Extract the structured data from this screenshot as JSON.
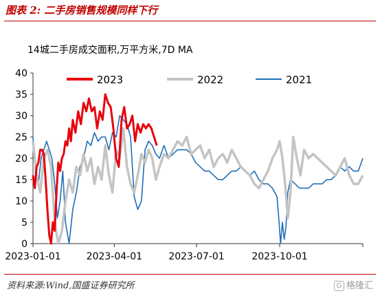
{
  "figure": {
    "title": "图表 2:  二手房销售规模同样下行",
    "source": "资料来源:Wind,国盛证券研究所",
    "watermark": "格隆汇",
    "watermark_icon": "G"
  },
  "chart_data": {
    "type": "line",
    "title": "14城二手房成交面积,万平方米,7D MA",
    "xlabel": "",
    "ylabel": "",
    "x_ticks": [
      "2023-01-01",
      "2023-04-01",
      "2023-07-01",
      "2023-10-01"
    ],
    "y_ticks": [
      0,
      5,
      10,
      15,
      20,
      25,
      30,
      35,
      40
    ],
    "ylim": [
      0,
      40
    ],
    "xlim": [
      0,
      365
    ],
    "grid": false,
    "legend_position": "top",
    "series": [
      {
        "name": "2023",
        "color": "#e8000b",
        "x": [
          0,
          2,
          4,
          6,
          8,
          10,
          12,
          14,
          16,
          18,
          20,
          22,
          24,
          26,
          28,
          30,
          32,
          34,
          36,
          38,
          40,
          42,
          44,
          47,
          50,
          53,
          56,
          59,
          62,
          65,
          68,
          71,
          74,
          77,
          80,
          83,
          86,
          89,
          92,
          95,
          98,
          101,
          104,
          107,
          110,
          113,
          116,
          119,
          122,
          125,
          128,
          131,
          134,
          137
        ],
        "values": [
          16,
          13,
          18,
          19,
          22,
          22,
          21,
          15,
          8,
          2,
          0,
          5,
          3,
          12,
          19,
          17,
          20,
          21,
          24,
          23,
          27,
          24,
          29,
          26,
          31,
          28,
          33,
          31,
          34,
          31,
          32,
          27,
          31,
          29,
          35,
          33,
          32,
          27,
          20,
          18,
          29,
          32,
          27,
          28,
          30,
          24,
          28,
          26,
          28,
          27,
          28,
          27,
          25,
          23
        ]
      },
      {
        "name": "2022",
        "color": "#c4c4c4",
        "x": [
          0,
          4,
          8,
          12,
          16,
          20,
          24,
          28,
          32,
          36,
          40,
          44,
          48,
          52,
          56,
          60,
          64,
          68,
          72,
          76,
          80,
          84,
          88,
          92,
          96,
          100,
          104,
          108,
          112,
          116,
          120,
          124,
          128,
          132,
          136,
          140,
          145,
          150,
          155,
          160,
          165,
          170,
          175,
          180,
          185,
          190,
          195,
          200,
          205,
          210,
          215,
          220,
          225,
          230,
          235,
          240,
          245,
          250,
          255,
          260,
          265,
          270,
          273,
          276,
          279,
          282,
          285,
          288,
          292,
          296,
          300,
          305,
          310,
          315,
          320,
          325,
          330,
          335,
          340,
          345,
          350,
          355,
          360,
          365
        ],
        "values": [
          24,
          16,
          12,
          20,
          22,
          18,
          5,
          0,
          3,
          10,
          15,
          12,
          18,
          16,
          21,
          17,
          20,
          14,
          18,
          15,
          23,
          16,
          12,
          22,
          20,
          27,
          18,
          14,
          12,
          16,
          21,
          19,
          22,
          20,
          15,
          18,
          21,
          20,
          22,
          24,
          23,
          25,
          21,
          22,
          23,
          20,
          22,
          18,
          20,
          21,
          19,
          22,
          20,
          18,
          17,
          16,
          14,
          13,
          15,
          17,
          20,
          22,
          24,
          20,
          14,
          6,
          12,
          25,
          20,
          16,
          22,
          20,
          21,
          20,
          19,
          18,
          17,
          16,
          18,
          20,
          16,
          14,
          14,
          16
        ]
      },
      {
        "name": "2021",
        "color": "#1f6db5",
        "x": [
          0,
          3,
          6,
          9,
          12,
          15,
          18,
          21,
          24,
          27,
          30,
          33,
          36,
          40,
          44,
          48,
          52,
          56,
          60,
          64,
          68,
          72,
          76,
          80,
          84,
          88,
          92,
          96,
          100,
          104,
          108,
          112,
          116,
          120,
          124,
          128,
          132,
          136,
          140,
          145,
          150,
          155,
          160,
          165,
          170,
          175,
          180,
          185,
          190,
          195,
          200,
          205,
          210,
          215,
          220,
          225,
          230,
          235,
          240,
          245,
          250,
          255,
          260,
          265,
          270,
          272,
          274,
          276,
          278,
          280,
          282,
          285,
          290,
          295,
          300,
          305,
          310,
          315,
          320,
          325,
          330,
          335,
          340,
          345,
          350,
          355,
          360,
          365
        ],
        "values": [
          25,
          16,
          14,
          20,
          22,
          24,
          22,
          20,
          14,
          6,
          10,
          17,
          5,
          0,
          8,
          12,
          18,
          20,
          24,
          23,
          26,
          24,
          25,
          25,
          22,
          26,
          25,
          30,
          29,
          28,
          25,
          11,
          8,
          10,
          22,
          24,
          23,
          21,
          20,
          23,
          20,
          21,
          22,
          22,
          22,
          21,
          19,
          18,
          17,
          17,
          16,
          15,
          15,
          16,
          17,
          17,
          18,
          17,
          16,
          17,
          15,
          14,
          14,
          13,
          11,
          6,
          0,
          5,
          1,
          4,
          12,
          15,
          14,
          13,
          13,
          13,
          14,
          14,
          14,
          15,
          15,
          16,
          18,
          17,
          18,
          17,
          17,
          20
        ]
      }
    ]
  }
}
